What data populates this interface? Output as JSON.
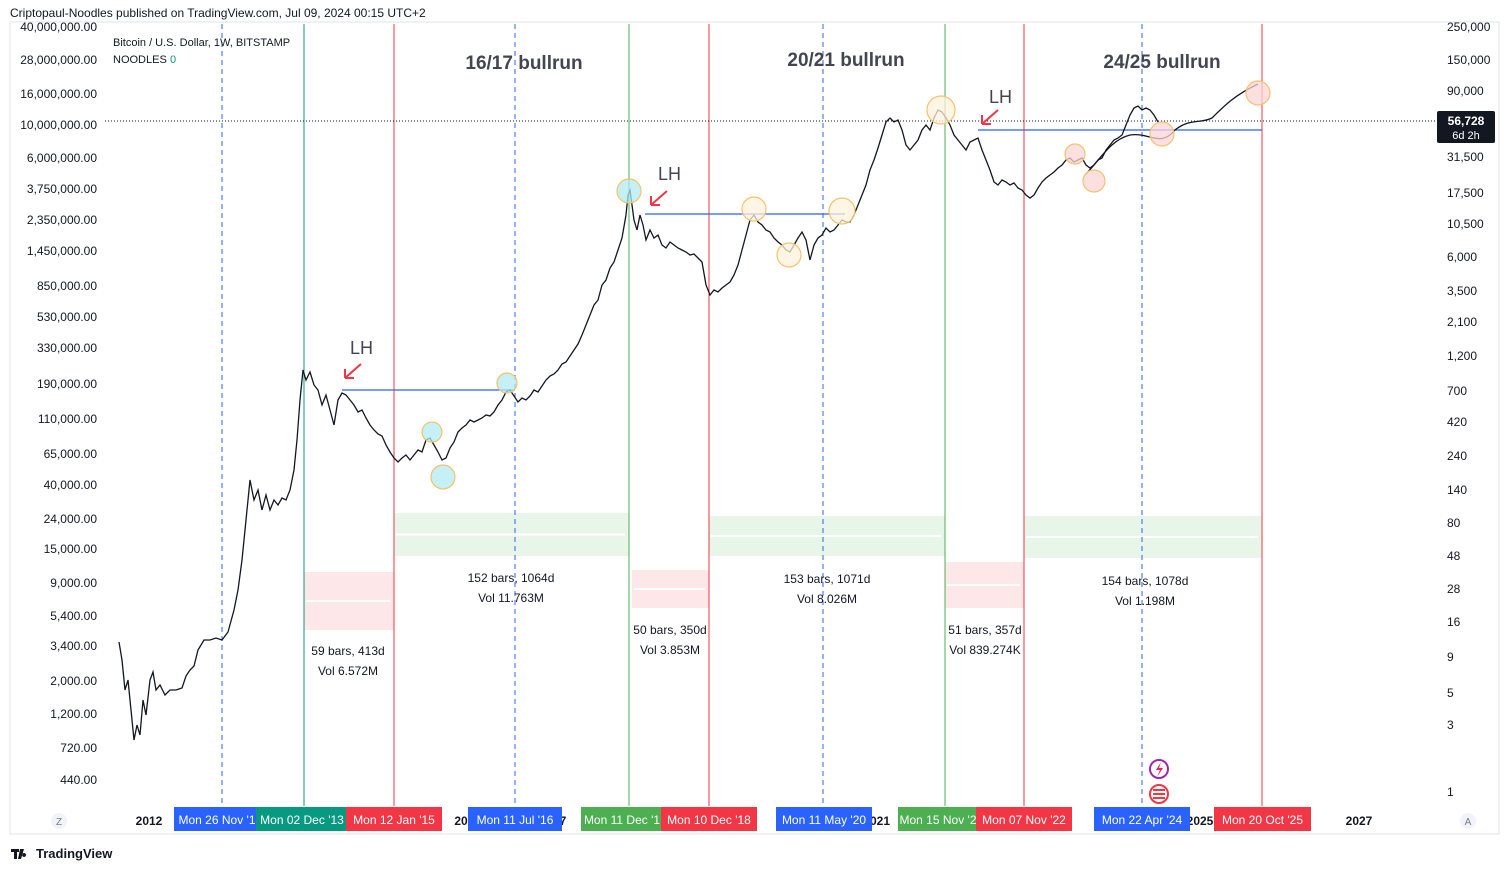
{
  "header": {
    "publisher": "Criptopaul-Noodles published on TradingView.com, Jul 09, 2024 00:15 UTC+2"
  },
  "legend": {
    "symbol": "Bitcoin / U.S. Dollar, 1W, BITSTAMP",
    "indicator": "NOODLES",
    "indicator_value": "0"
  },
  "footer": {
    "brand": "TradingView",
    "logo": "tradingview-logo-icon"
  },
  "chart_data": {
    "type": "line",
    "title": "",
    "yscale": "log",
    "left_axis_ticks": [
      "40,000,000.00",
      "28,000,000.00",
      "16,000,000.00",
      "10,000,000.00",
      "6,000,000.00",
      "3,750,000.00",
      "2,350,000.00",
      "1,450,000.00",
      "850,000.00",
      "530,000.00",
      "330,000.00",
      "190,000.00",
      "110,000.00",
      "65,000.00",
      "40,000.00",
      "24,000.00",
      "15,000.00",
      "9,000.00",
      "5,400.00",
      "3,400.00",
      "2,000.00",
      "1,200.00",
      "720.00",
      "440.00"
    ],
    "right_axis_ticks": [
      "250,000",
      "150,000",
      "90,000",
      "50,000",
      "31,500",
      "17,500",
      "10,500",
      "6,000",
      "3,500",
      "2,100",
      "1,200",
      "700",
      "420",
      "240",
      "140",
      "80",
      "48",
      "28",
      "16",
      "9",
      "5",
      "3",
      "1"
    ],
    "price_label": {
      "value": "56,728",
      "countdown": "6d 2h"
    },
    "x_year_ticks": [
      "2012",
      "2025",
      "2027"
    ],
    "x_partial_ticks": [
      "20",
      "7",
      "'1",
      "021"
    ],
    "date_markers": [
      {
        "text": "Mon 26 Nov '1",
        "color": "#2962ff"
      },
      {
        "text": "Mon 02 Dec '13",
        "color": "#089981"
      },
      {
        "text": "Mon 12 Jan '15",
        "color": "#f23645"
      },
      {
        "text": "Mon 11 Jul '16",
        "color": "#2962ff"
      },
      {
        "text": "Mon 11 Dec '1",
        "color": "#4caf50"
      },
      {
        "text": "Mon 10 Dec '18",
        "color": "#f23645"
      },
      {
        "text": "Mon 11 May '20",
        "color": "#2962ff"
      },
      {
        "text": "Mon 15 Nov '2",
        "color": "#4caf50"
      },
      {
        "text": "Mon 07 Nov '22",
        "color": "#f23645"
      },
      {
        "text": "Mon 22 Apr '24",
        "color": "#2962ff"
      },
      {
        "text": "Mon 20 Oct '25",
        "color": "#f23645"
      }
    ],
    "cycle_labels": [
      "16/17 bullrun",
      "20/21 bullrun",
      "24/25 bullrun"
    ],
    "lh_labels": [
      "LH",
      "LH",
      "LH"
    ],
    "bear_ranges": [
      {
        "bars": "59 bars, 413d",
        "vol": "Vol 6.572M"
      },
      {
        "bars": "50 bars, 350d",
        "vol": "Vol 3.853M"
      },
      {
        "bars": "51 bars, 357d",
        "vol": "Vol 839.274K"
      }
    ],
    "bull_ranges": [
      {
        "bars": "152 bars, 1064d",
        "vol": "Vol 11.763M"
      },
      {
        "bars": "153 bars, 1071d",
        "vol": "Vol 8.026M"
      },
      {
        "bars": "154 bars, 1078d",
        "vol": "Vol 1.198M"
      }
    ],
    "colors": {
      "price": "#131722",
      "blue_line": "#2962ff",
      "red_line": "#f23645",
      "green_line": "#4caf50",
      "bull_zone": "#e8f5e9",
      "bear_zone": "#fde7e9"
    },
    "axis_buttons": {
      "left": "Z",
      "right": "A"
    }
  }
}
